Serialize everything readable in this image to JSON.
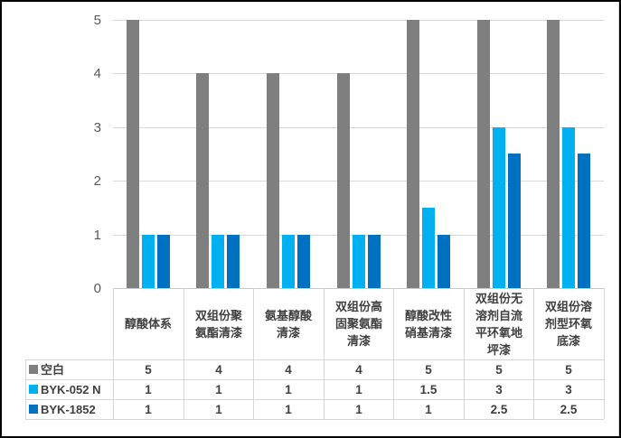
{
  "chart_data": {
    "type": "bar",
    "title": "",
    "xlabel": "",
    "ylabel": "",
    "categories": [
      "醇酸体系",
      "双组份聚氨酯清漆",
      "氨基醇酸清漆",
      "双组份高固聚氨酯清漆",
      "醇酸改性硝基清漆",
      "双组份无溶剂自流平环氧地坪漆",
      "双组份溶剂型环氧底漆"
    ],
    "series": [
      {
        "name": "空白",
        "color": "#7F7F7F",
        "values": [
          5,
          4,
          4,
          4,
          5,
          5,
          5
        ]
      },
      {
        "name": "BYK-052 N",
        "color": "#00B0F0",
        "values": [
          1,
          1,
          1,
          1,
          1.5,
          3,
          3
        ]
      },
      {
        "name": "BYK-1852",
        "color": "#0070C0",
        "values": [
          1,
          1,
          1,
          1,
          1,
          2.5,
          2.5
        ]
      }
    ],
    "ylim": [
      0,
      5
    ],
    "yticks": [
      0,
      1,
      2,
      3,
      4,
      5
    ],
    "grid": true,
    "legend_position": "data-table-left",
    "data_table": true
  },
  "colors": {
    "grid": "#D9D9D9",
    "axis_line": "#C9C9C9",
    "table_border": "#D6D6D6",
    "axis_label": "#595959",
    "table_text": "#3F3F3F",
    "background": "#FFFFFF",
    "frame": "#000000",
    "chart_right_border": "#D9D9D9"
  }
}
